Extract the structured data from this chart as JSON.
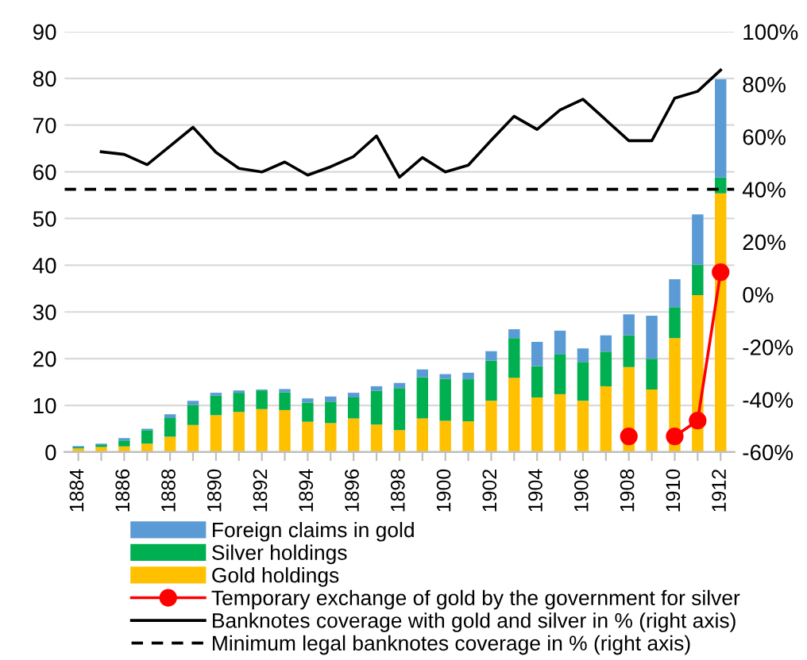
{
  "chart_data": {
    "type": "bar",
    "stacked": true,
    "categories": [
      "1884",
      null,
      "1886",
      null,
      "1888",
      null,
      "1890",
      null,
      "1892",
      null,
      "1894",
      null,
      "1896",
      null,
      "1898",
      null,
      "1900",
      null,
      "1902",
      null,
      "1904",
      null,
      "1906",
      null,
      "1908",
      null,
      "1910",
      null,
      "1912"
    ],
    "series": [
      {
        "name": "Gold holdings",
        "color": "#ffc000",
        "values": [
          0.8,
          1.1,
          1.2,
          1.8,
          3.3,
          5.8,
          7.9,
          8.6,
          9.2,
          9.0,
          6.5,
          6.2,
          7.2,
          5.9,
          4.7,
          7.2,
          6.7,
          6.6,
          11.0,
          15.9,
          11.7,
          12.4,
          11.0,
          14.1,
          18.2,
          13.4,
          24.4,
          33.6,
          55.4
        ]
      },
      {
        "name": "Silver holdings",
        "color": "#00b050",
        "values": [
          0.2,
          0.4,
          1.3,
          2.9,
          4.0,
          4.3,
          4.2,
          4.1,
          4.0,
          3.8,
          4.1,
          4.6,
          4.5,
          7.2,
          9.0,
          8.8,
          9.0,
          9.0,
          8.6,
          8.5,
          6.7,
          8.6,
          8.3,
          7.4,
          6.8,
          6.6,
          6.6,
          6.5,
          3.4
        ]
      },
      {
        "name": "Foreign claims in gold",
        "color": "#5b9bd5",
        "values": [
          0.3,
          0.3,
          0.5,
          0.3,
          0.8,
          0.9,
          0.6,
          0.5,
          0.2,
          0.7,
          0.9,
          1.1,
          1.0,
          1.0,
          1.1,
          1.7,
          1.0,
          1.4,
          2.0,
          1.9,
          5.2,
          5.0,
          2.9,
          3.5,
          4.5,
          9.2,
          6.0,
          10.8,
          21.0
        ]
      },
      {
        "name": "Temporary exchange of gold by the government for silver",
        "type": "line",
        "axis": "y2",
        "color": "#ff0000",
        "marker": "circle",
        "values": [
          null,
          null,
          null,
          null,
          null,
          null,
          null,
          null,
          null,
          null,
          null,
          null,
          null,
          null,
          null,
          null,
          null,
          null,
          null,
          null,
          null,
          null,
          null,
          null,
          -54,
          null,
          -54,
          -48,
          8.5
        ]
      },
      {
        "name": "Banknotes coverage with gold and silver in % (right axis)",
        "type": "line",
        "axis": "y2",
        "color": "#000000",
        "values": [
          null,
          54.3,
          53.3,
          49.4,
          56.5,
          63.6,
          54.1,
          48.0,
          46.6,
          50.4,
          45.4,
          48.6,
          52.5,
          60.3,
          44.6,
          52.1,
          46.6,
          49.2,
          58.7,
          67.8,
          62.8,
          70.2,
          74.3,
          66.4,
          58.5,
          58.5,
          74.7,
          77.3,
          85.4
        ]
      }
    ],
    "ref_lines": [
      {
        "axis": "y2",
        "value": 40,
        "label": "Minimum legal banknotes coverage in % (right axis)",
        "color": "#000000",
        "line_style": "dashed"
      }
    ],
    "ylim": [
      0,
      90
    ],
    "yticks": [
      0,
      10,
      20,
      30,
      40,
      50,
      60,
      70,
      80,
      90
    ],
    "y2lim": [
      -60,
      100
    ],
    "y2ticks": [
      {
        "value": -60,
        "label": "-60%"
      },
      {
        "value": -40,
        "label": "-40%"
      },
      {
        "value": -20,
        "label": "-20%"
      },
      {
        "value": 0,
        "label": "0%"
      },
      {
        "value": 20,
        "label": "20%"
      },
      {
        "value": 40,
        "label": "40%"
      },
      {
        "value": 60,
        "label": "60%"
      },
      {
        "value": 80,
        "label": "80%"
      },
      {
        "value": 100,
        "label": "100%"
      }
    ],
    "grid": "y",
    "legend": "bottom"
  }
}
